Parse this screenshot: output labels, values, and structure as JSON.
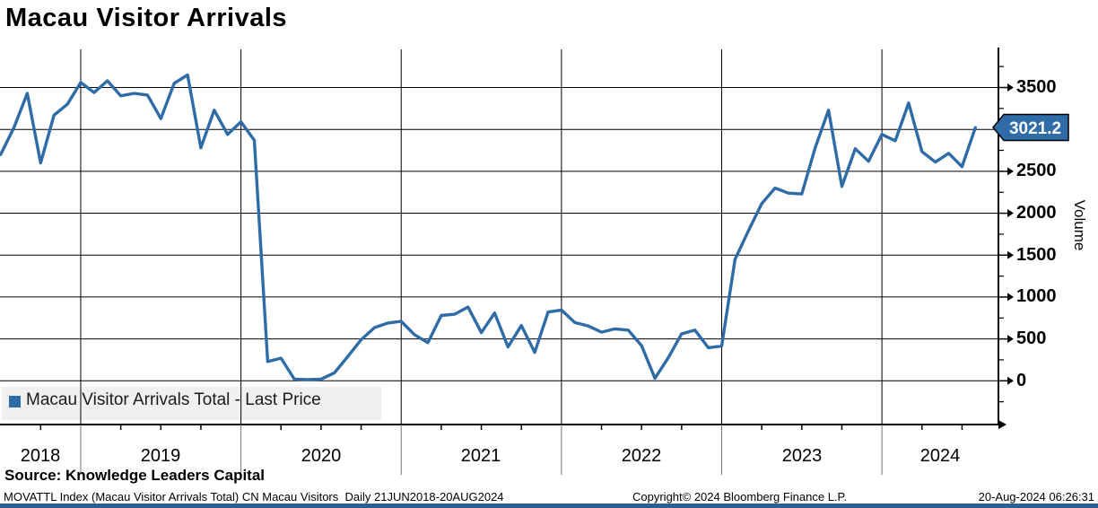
{
  "title": "Macau Visitor Arrivals",
  "legend": {
    "label": "Macau Visitor Arrivals Total - Last Price",
    "marker_color": "#2f6ba7"
  },
  "yaxis": {
    "title": "Volume",
    "labels": [
      "3500",
      "2500",
      "2000",
      "1500",
      "1000",
      "500",
      "0"
    ],
    "last_price_badge": "3021.2"
  },
  "xaxis": {
    "years": [
      "2018",
      "2019",
      "2020",
      "2021",
      "2022",
      "2023",
      "2024"
    ]
  },
  "footer": {
    "source": "Source: Knowledge Leaders Capital",
    "meta_left": "MOVATTL Index (Macau Visitor Arrivals Total) CN Macau Visitors  Daily 21JUN2018-20AUG2024",
    "meta_center": "Copyright© 2024 Bloomberg Finance L.P.",
    "meta_right": "20-Aug-2024 06:26:31"
  },
  "chart_data": {
    "type": "line",
    "title": "Macau Visitor Arrivals",
    "series_name": "Macau Visitor Arrivals Total - Last Price",
    "ylabel": "Volume",
    "line_color": "#2f6ba7",
    "grid": true,
    "legend_position": "bottom-left",
    "ylim": [
      0,
      3500
    ],
    "y_major_ticks": [
      0,
      500,
      1000,
      1500,
      2000,
      2500,
      3000,
      3500
    ],
    "x_range": [
      "2018-06-21",
      "2024-08-20"
    ],
    "last_price": 3021.2,
    "x": [
      "2018-06",
      "2018-07",
      "2018-08",
      "2018-09",
      "2018-10",
      "2018-11",
      "2018-12",
      "2019-01",
      "2019-02",
      "2019-03",
      "2019-04",
      "2019-05",
      "2019-06",
      "2019-07",
      "2019-08",
      "2019-09",
      "2019-10",
      "2019-11",
      "2019-12",
      "2020-01",
      "2020-02",
      "2020-03",
      "2020-04",
      "2020-05",
      "2020-06",
      "2020-07",
      "2020-08",
      "2020-09",
      "2020-10",
      "2020-11",
      "2020-12",
      "2021-01",
      "2021-02",
      "2021-03",
      "2021-04",
      "2021-05",
      "2021-06",
      "2021-07",
      "2021-08",
      "2021-09",
      "2021-10",
      "2021-11",
      "2021-12",
      "2022-01",
      "2022-02",
      "2022-03",
      "2022-04",
      "2022-05",
      "2022-06",
      "2022-07",
      "2022-08",
      "2022-09",
      "2022-10",
      "2022-11",
      "2022-12",
      "2023-01",
      "2023-02",
      "2023-03",
      "2023-04",
      "2023-05",
      "2023-06",
      "2023-07",
      "2023-08",
      "2023-09",
      "2023-10",
      "2023-11",
      "2023-12",
      "2024-01",
      "2024-02",
      "2024-03",
      "2024-04",
      "2024-05",
      "2024-06",
      "2024-07"
    ],
    "values": [
      2700,
      3020,
      3430,
      2600,
      3170,
      3300,
      3560,
      3440,
      3580,
      3400,
      3430,
      3410,
      3130,
      3550,
      3650,
      2780,
      3230,
      2940,
      3090,
      2870,
      230,
      270,
      20,
      15,
      20,
      95,
      290,
      490,
      635,
      690,
      710,
      550,
      455,
      780,
      795,
      880,
      575,
      810,
      405,
      660,
      340,
      820,
      845,
      695,
      655,
      580,
      620,
      605,
      420,
      30,
      275,
      560,
      605,
      395,
      415,
      1450,
      1790,
      2115,
      2300,
      2240,
      2230,
      2780,
      3230,
      2320,
      2770,
      2620,
      2940,
      2865,
      3315,
      2735,
      2610,
      2715,
      2555,
      3021.2
    ]
  }
}
